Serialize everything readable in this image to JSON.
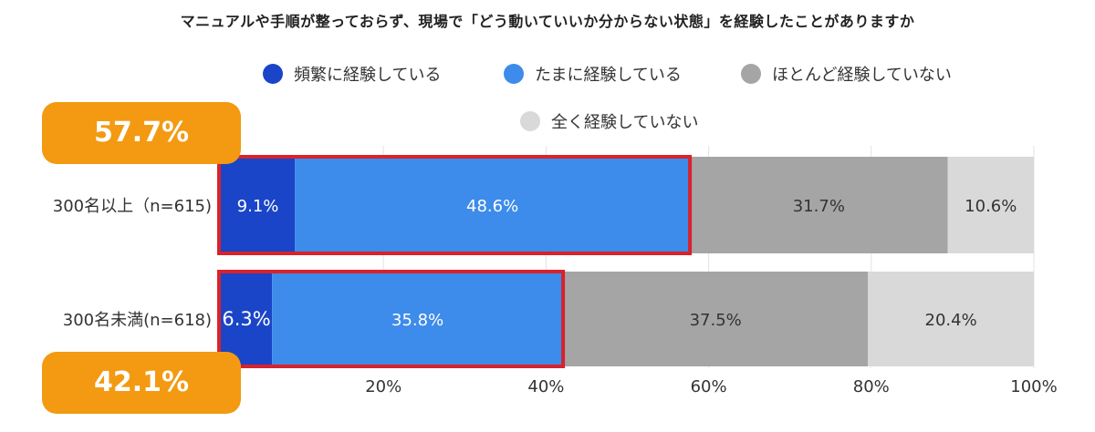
{
  "chart_data": {
    "type": "bar",
    "orientation": "horizontal",
    "stacked": true,
    "title": "マニュアルや手順が整っておらず、現場で「どう動いていいか分からない状態」を経験したことがありますか",
    "categories": [
      "300名以上（n=615)",
      "300名未満(n=618)"
    ],
    "series": [
      {
        "name": "頻繁に経験している",
        "color": "#1a45c8",
        "values": [
          9.1,
          6.3
        ],
        "labels": [
          "9.1%",
          "6.3%"
        ]
      },
      {
        "name": "たまに経験している",
        "color": "#3d8bea",
        "values": [
          48.6,
          35.8
        ],
        "labels": [
          "48.6%",
          "35.8%"
        ]
      },
      {
        "name": "ほとんど経験していない",
        "color": "#a5a5a5",
        "values": [
          31.7,
          37.5
        ],
        "labels": [
          "31.7%",
          "37.5%"
        ]
      },
      {
        "name": "全く経験していない",
        "color": "#d9d9d9",
        "values": [
          10.6,
          20.4
        ],
        "labels": [
          "10.6%",
          "20.4%"
        ]
      }
    ],
    "xlim": [
      0,
      100
    ],
    "xticks": [
      "20%",
      "40%",
      "60%",
      "80%",
      "100%"
    ],
    "xtick_values": [
      20,
      40,
      60,
      80,
      100
    ],
    "gridlines": true,
    "legend_position": "top",
    "highlight_color": "#d9222a",
    "highlight": [
      {
        "category_index": 0,
        "total": 57.7,
        "label": "57.7%"
      },
      {
        "category_index": 1,
        "total": 42.1,
        "label": "42.1%"
      }
    ],
    "callout_color": "#f39a12"
  }
}
